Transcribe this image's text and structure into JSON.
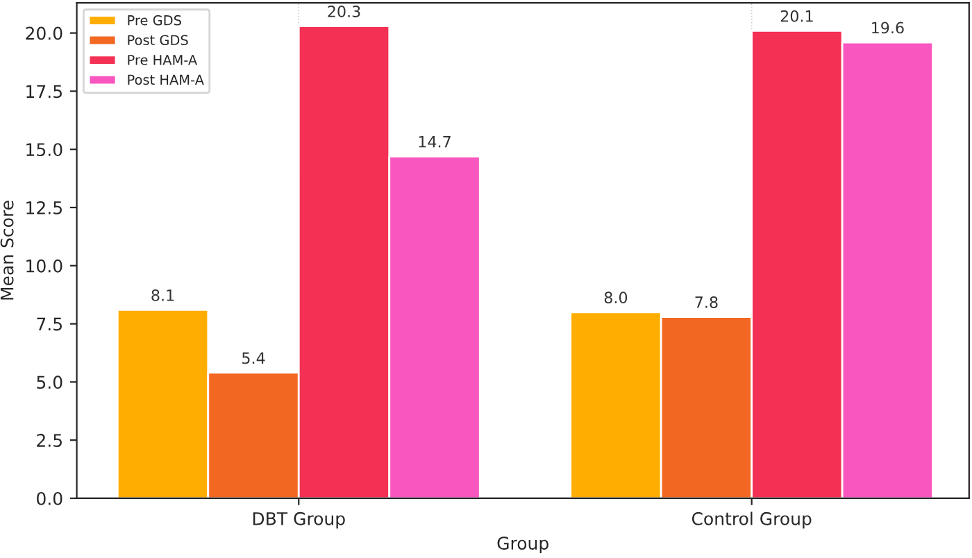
{
  "chart_data": {
    "type": "bar",
    "xlabel": "Group",
    "ylabel": "Mean Score",
    "categories": [
      "DBT Group",
      "Control Group"
    ],
    "series": [
      {
        "name": "Pre GDS",
        "color": "#ffad00",
        "values": [
          8.1,
          8.0
        ],
        "value_labels": [
          "8.1",
          "8.0"
        ]
      },
      {
        "name": "Post GDS",
        "color": "#f26722",
        "values": [
          5.4,
          7.8
        ],
        "value_labels": [
          "5.4",
          "7.8"
        ]
      },
      {
        "name": "Pre HAM-A",
        "color": "#f43054",
        "values": [
          20.3,
          20.1
        ],
        "value_labels": [
          "20.3",
          "20.1"
        ]
      },
      {
        "name": "Post HAM-A",
        "color": "#f956c0",
        "values": [
          14.7,
          19.6
        ],
        "value_labels": [
          "14.7",
          "19.6"
        ]
      }
    ],
    "ylim": [
      0,
      21.3
    ],
    "yticks": [
      {
        "value": 0,
        "label": "0.0"
      },
      {
        "value": 2.5,
        "label": "2.5"
      },
      {
        "value": 5,
        "label": "5.0"
      },
      {
        "value": 7.5,
        "label": "7.5"
      },
      {
        "value": 10,
        "label": "10.0"
      },
      {
        "value": 12.5,
        "label": "12.5"
      },
      {
        "value": 15,
        "label": "15.0"
      },
      {
        "value": 17.5,
        "label": "17.5"
      },
      {
        "value": 20,
        "label": "20.0"
      }
    ],
    "grid": "x",
    "legend": "top left"
  }
}
